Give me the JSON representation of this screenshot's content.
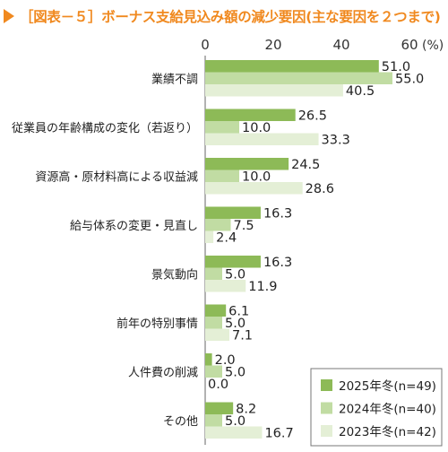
{
  "title": "［図表－５］ボーナス支給見込み額の減少要因(主な要因を２つまで)",
  "colors": {
    "title": "#f0891f",
    "s2025": "#8dba57",
    "s2024": "#c1dca3",
    "s2023": "#e4efd6",
    "axis": "#666666",
    "legend_border": "#777777"
  },
  "chart_data": {
    "type": "bar",
    "orientation": "horizontal",
    "unit": "(%)",
    "xlim": [
      0,
      60
    ],
    "ticks": [
      0,
      20,
      40,
      60
    ],
    "categories": [
      "業績不調",
      "従業員の年齢構成の変化（若返り）",
      "資源高・原材料高による収益減",
      "給与体系の変更・見直し",
      "景気動向",
      "前年の特別事情",
      "人件費の削減",
      "その他"
    ],
    "series": [
      {
        "name": "2025年冬(n=49)",
        "values": [
          51.0,
          26.5,
          24.5,
          16.3,
          16.3,
          6.1,
          2.0,
          8.2
        ]
      },
      {
        "name": "2024年冬(n=40)",
        "values": [
          55.0,
          10.0,
          10.0,
          7.5,
          5.0,
          5.0,
          5.0,
          5.0
        ]
      },
      {
        "name": "2023年冬(n=42)",
        "values": [
          40.5,
          33.3,
          28.6,
          2.4,
          11.9,
          7.1,
          0.0,
          16.7
        ]
      }
    ],
    "legend_position": "bottom-right"
  }
}
